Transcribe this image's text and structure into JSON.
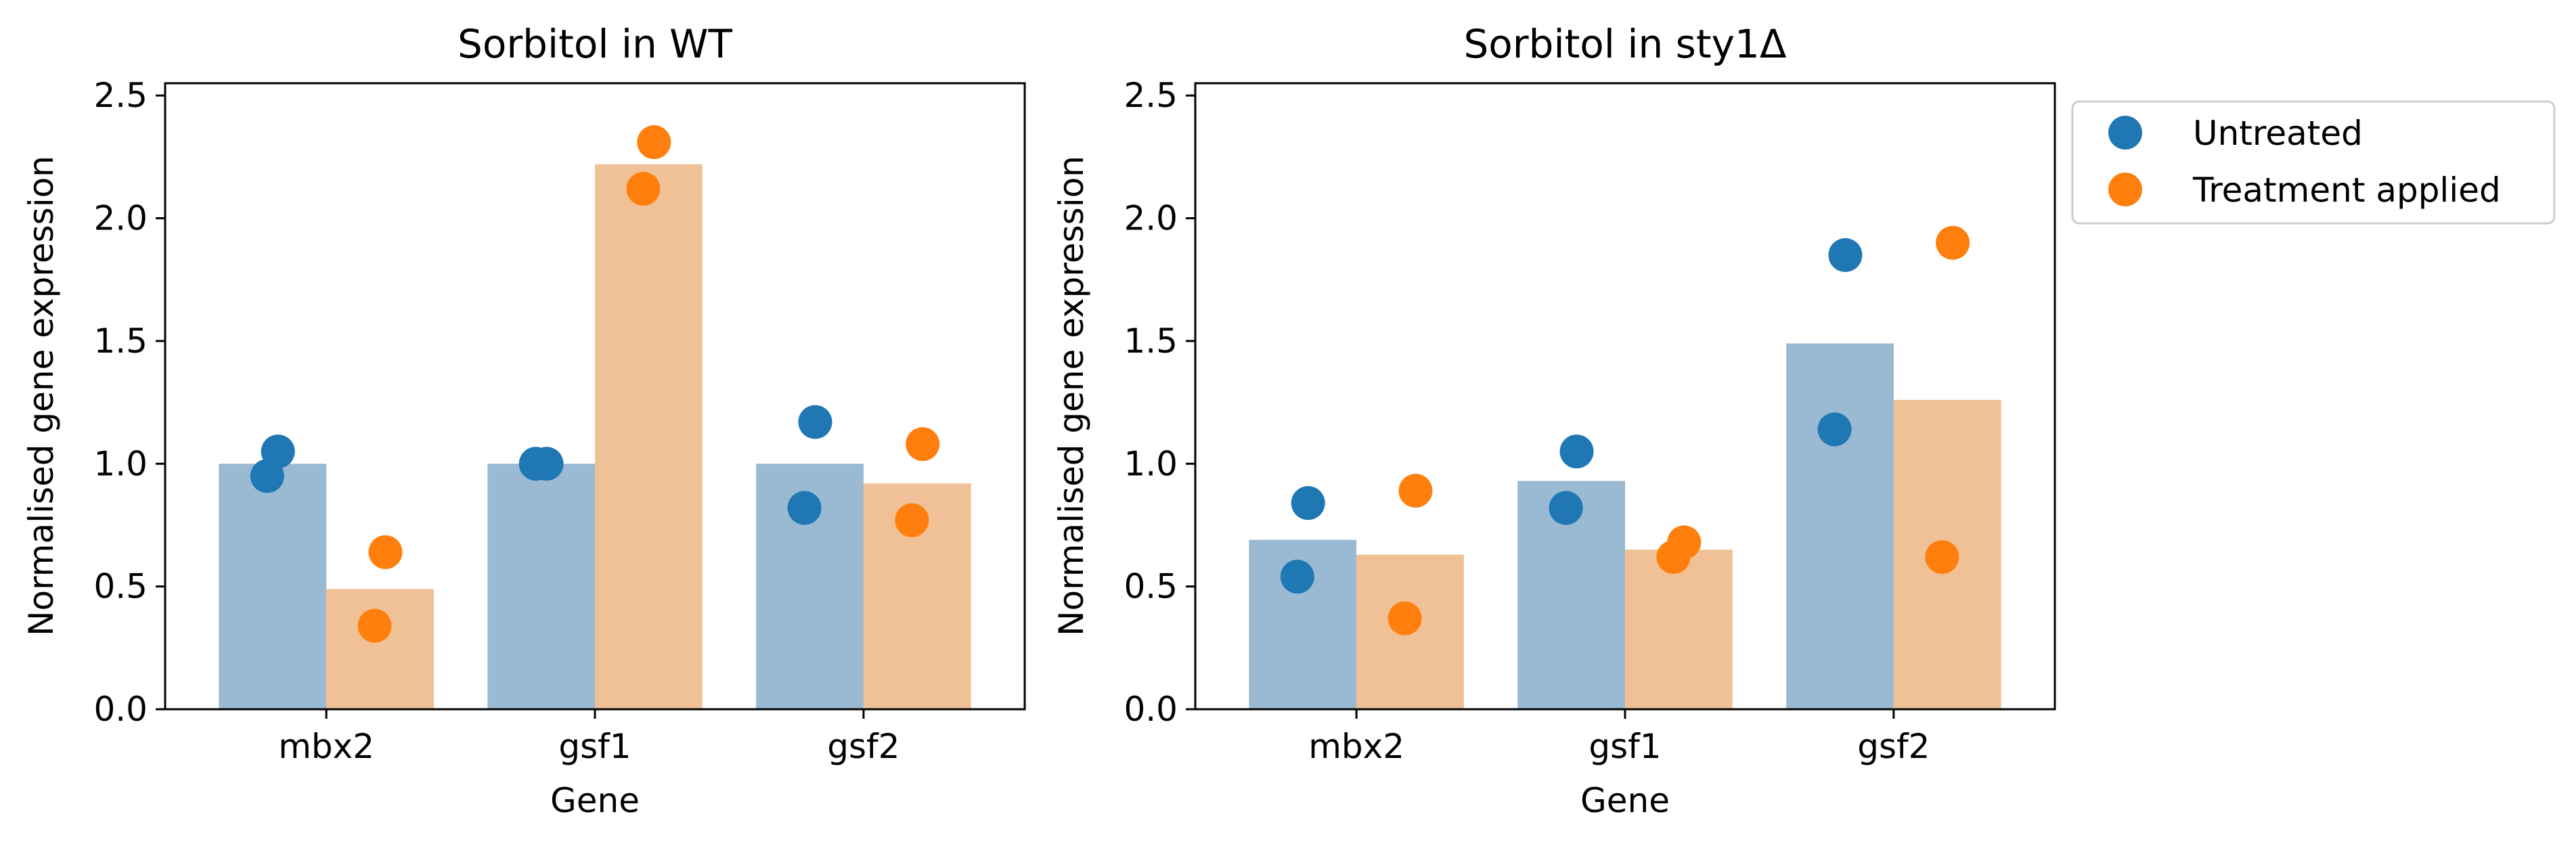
{
  "colors": {
    "untreated": "#1f77b4",
    "treated": "#ff7f0e",
    "untreated_bar": "#9ab9d2",
    "treated_bar": "#f0c196"
  },
  "legend": {
    "placement": "outside-right-top",
    "items": [
      {
        "label": "Untreated",
        "color": "#1f77b4"
      },
      {
        "label": "Treatment applied",
        "color": "#ff7f0e"
      }
    ]
  },
  "chart_data": [
    {
      "type": "bar",
      "title": "Sorbitol in WT",
      "xlabel": "Gene",
      "ylabel": "Normalised gene expression",
      "ylim": [
        0,
        2.55
      ],
      "yticks": [
        "0.0",
        "0.5",
        "1.0",
        "1.5",
        "2.0",
        "2.5"
      ],
      "categories": [
        "mbx2",
        "gsf1",
        "gsf2"
      ],
      "grid": false,
      "series": [
        {
          "name": "Untreated",
          "color": "#1f77b4",
          "bar_color": "#9ab9d2",
          "values": [
            1.0,
            1.0,
            1.0
          ],
          "points": [
            [
              1.05,
              0.95
            ],
            [
              1.0,
              1.0
            ],
            [
              1.17,
              0.82
            ]
          ]
        },
        {
          "name": "Treatment applied",
          "color": "#ff7f0e",
          "bar_color": "#f0c196",
          "values": [
            0.49,
            2.22,
            0.92
          ],
          "points": [
            [
              0.64,
              0.34
            ],
            [
              2.31,
              2.12
            ],
            [
              1.08,
              0.77
            ]
          ]
        }
      ]
    },
    {
      "type": "bar",
      "title": "Sorbitol in sty1Δ",
      "xlabel": "Gene",
      "ylabel": "Normalised gene expression",
      "ylim": [
        0,
        2.55
      ],
      "yticks": [
        "0.0",
        "0.5",
        "1.0",
        "1.5",
        "2.0",
        "2.5"
      ],
      "categories": [
        "mbx2",
        "gsf1",
        "gsf2"
      ],
      "grid": false,
      "series": [
        {
          "name": "Untreated",
          "color": "#1f77b4",
          "bar_color": "#9ab9d2",
          "values": [
            0.69,
            0.93,
            1.49
          ],
          "points": [
            [
              0.84,
              0.54
            ],
            [
              1.05,
              0.82
            ],
            [
              1.85,
              1.14
            ]
          ]
        },
        {
          "name": "Treatment applied",
          "color": "#ff7f0e",
          "bar_color": "#f0c196",
          "values": [
            0.63,
            0.65,
            1.26
          ],
          "points": [
            [
              0.89,
              0.37
            ],
            [
              0.68,
              0.62
            ],
            [
              1.9,
              0.62
            ]
          ]
        }
      ]
    }
  ]
}
